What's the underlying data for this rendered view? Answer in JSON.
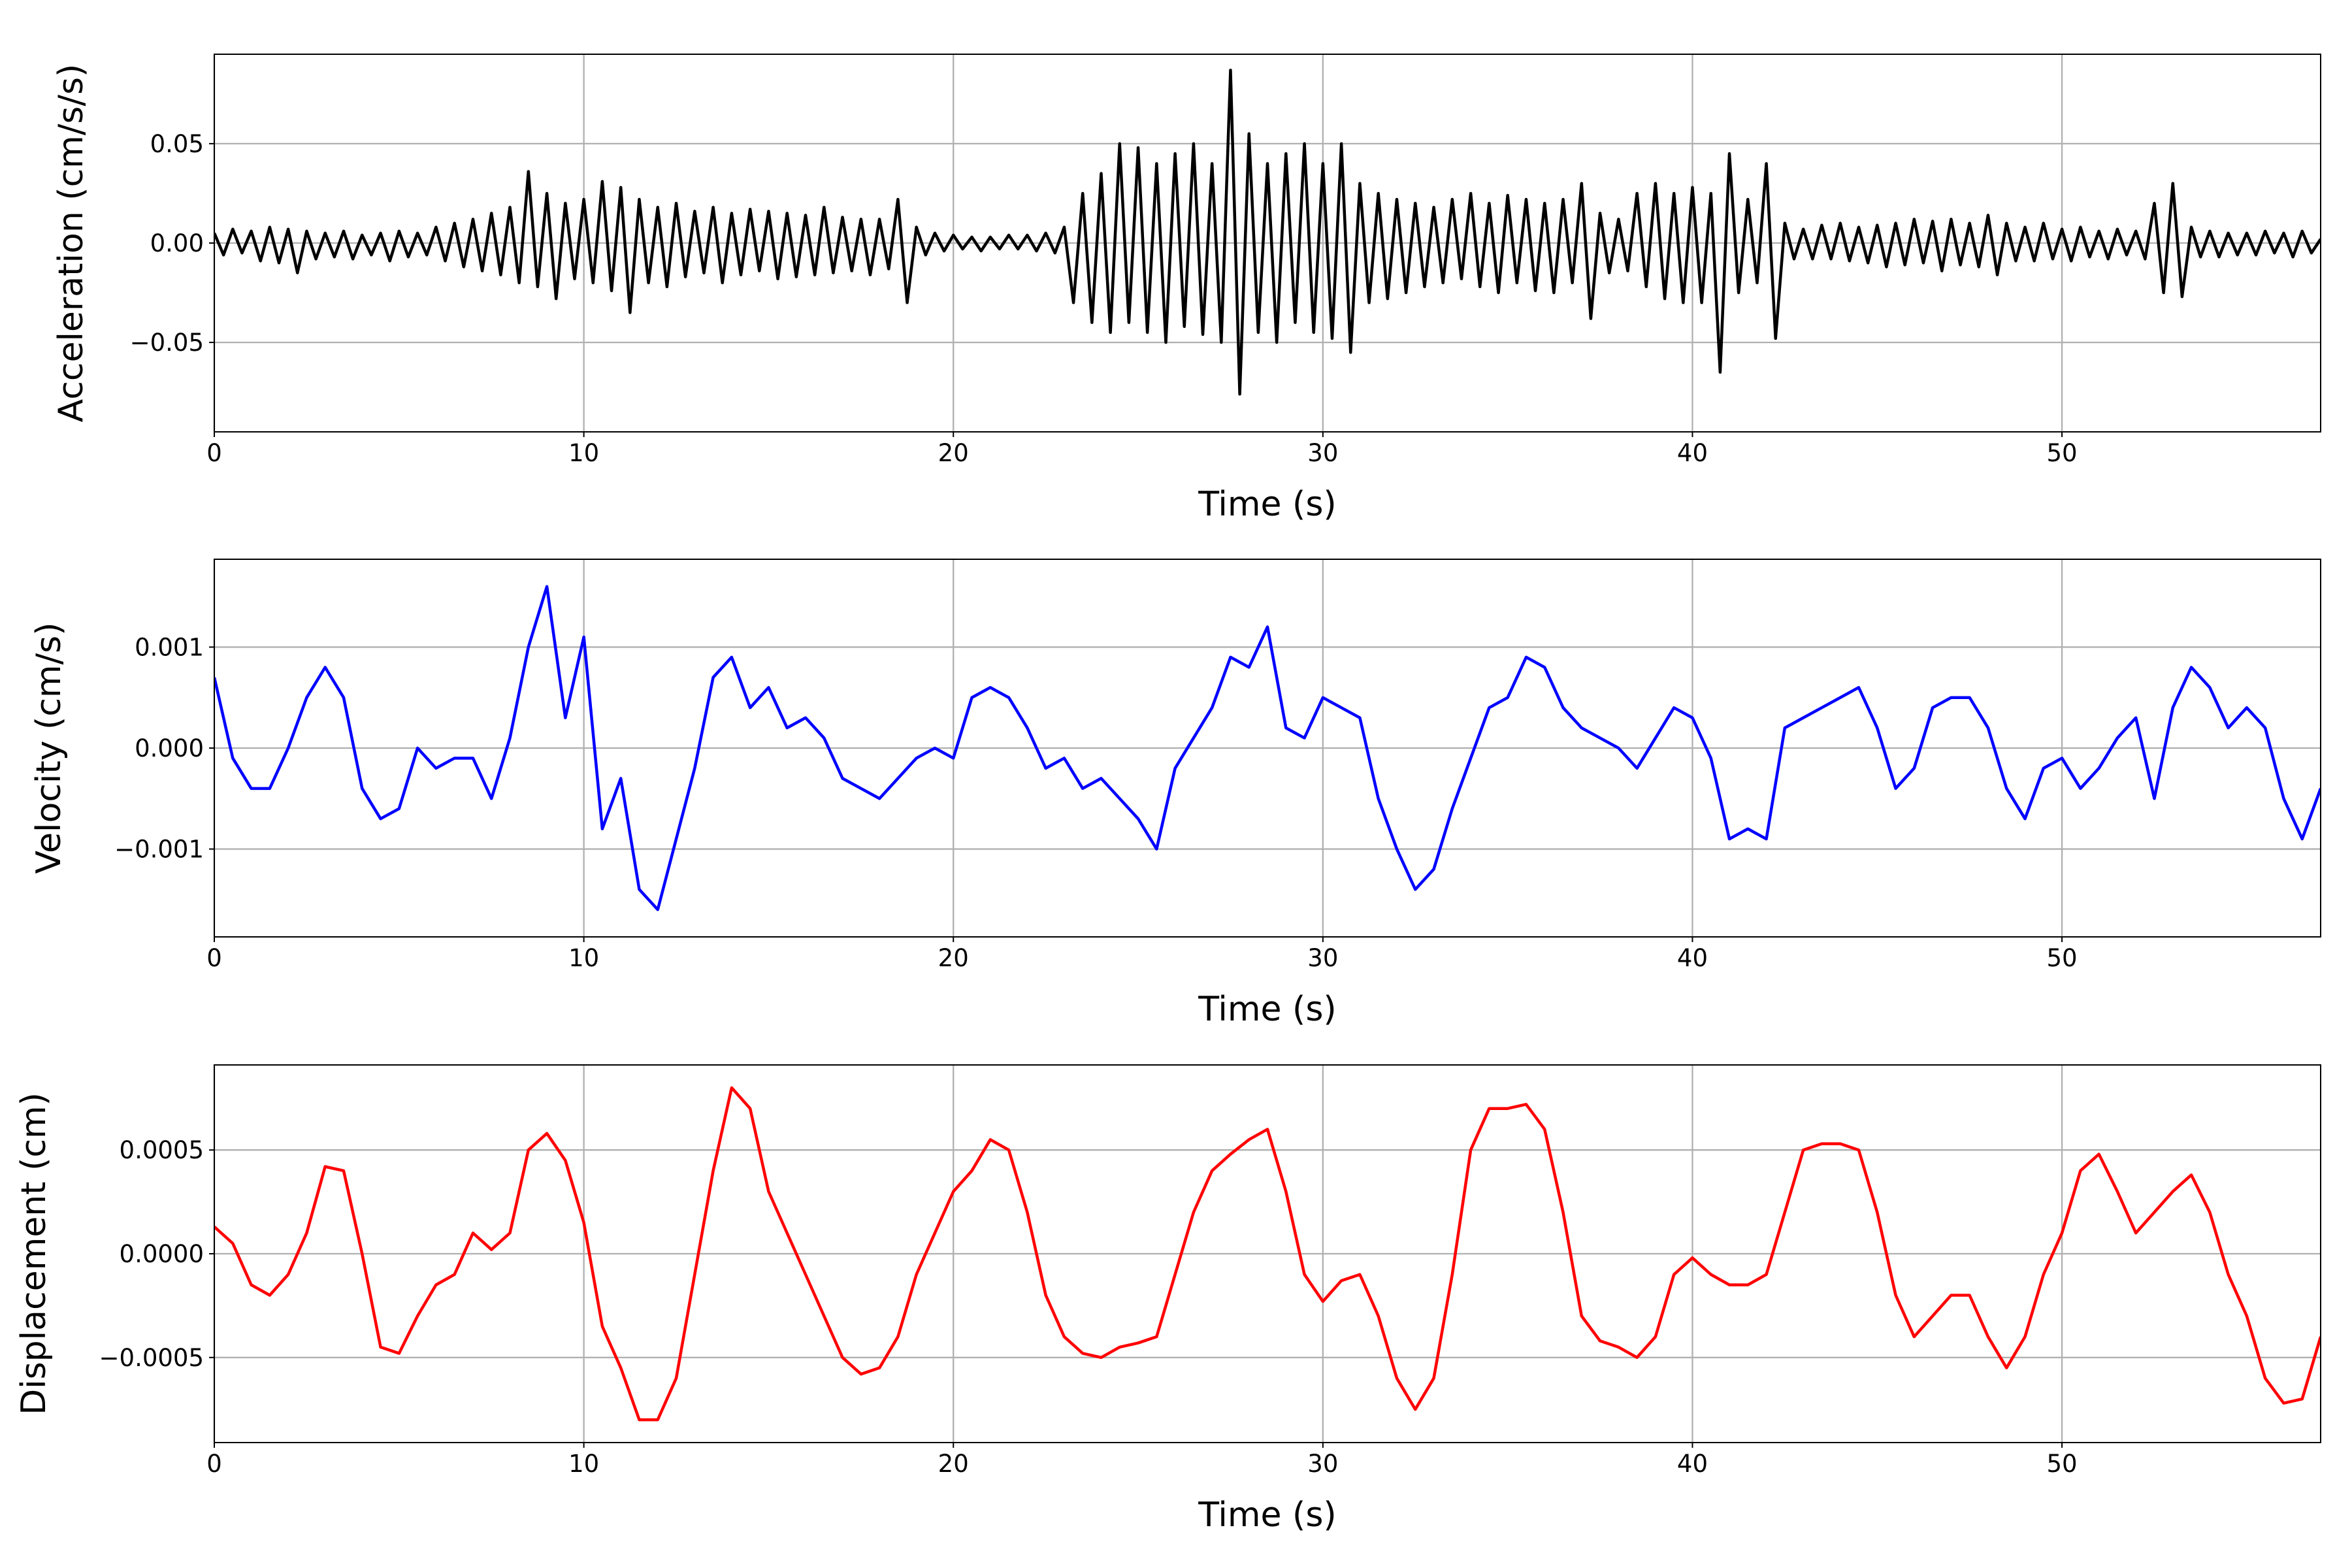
{
  "chart_data": [
    {
      "type": "line",
      "color": "#000000",
      "grid": true,
      "xlabel": "Time (s)",
      "ylabel": "Acceleration (cm/s/s)",
      "xlim": [
        0,
        57
      ],
      "xticks": [
        0,
        10,
        20,
        30,
        40,
        50
      ],
      "ylim": [
        -0.095,
        0.095
      ],
      "yticks": [
        {
          "value": -0.05,
          "label": "−0.05"
        },
        {
          "value": 0,
          "label": "0.00"
        },
        0.05
      ],
      "x": [
        0,
        0.25,
        0.5,
        0.75,
        1,
        1.25,
        1.5,
        1.75,
        2,
        2.25,
        2.5,
        2.75,
        3,
        3.25,
        3.5,
        3.75,
        4,
        4.25,
        4.5,
        4.75,
        5,
        5.25,
        5.5,
        5.75,
        6,
        6.25,
        6.5,
        6.75,
        7,
        7.25,
        7.5,
        7.75,
        8,
        8.25,
        8.5,
        8.75,
        9,
        9.25,
        9.5,
        9.75,
        10,
        10.25,
        10.5,
        10.75,
        11,
        11.25,
        11.5,
        11.75,
        12,
        12.25,
        12.5,
        12.75,
        13,
        13.25,
        13.5,
        13.75,
        14,
        14.25,
        14.5,
        14.75,
        15,
        15.25,
        15.5,
        15.75,
        16,
        16.25,
        16.5,
        16.75,
        17,
        17.25,
        17.5,
        17.75,
        18,
        18.25,
        18.5,
        18.75,
        19,
        19.25,
        19.5,
        19.75,
        20,
        20.25,
        20.5,
        20.75,
        21,
        21.25,
        21.5,
        21.75,
        22,
        22.25,
        22.5,
        22.75,
        23,
        23.25,
        23.5,
        23.75,
        24,
        24.25,
        24.5,
        24.75,
        25,
        25.25,
        25.5,
        25.75,
        26,
        26.25,
        26.5,
        26.75,
        27,
        27.25,
        27.5,
        27.75,
        28,
        28.25,
        28.5,
        28.75,
        29,
        29.25,
        29.5,
        29.75,
        30,
        30.25,
        30.5,
        30.75,
        31,
        31.25,
        31.5,
        31.75,
        32,
        32.25,
        32.5,
        32.75,
        33,
        33.25,
        33.5,
        33.75,
        34,
        34.25,
        34.5,
        34.75,
        35,
        35.25,
        35.5,
        35.75,
        36,
        36.25,
        36.5,
        36.75,
        37,
        37.25,
        37.5,
        37.75,
        38,
        38.25,
        38.5,
        38.75,
        39,
        39.25,
        39.5,
        39.75,
        40,
        40.25,
        40.5,
        40.75,
        41,
        41.25,
        41.5,
        41.75,
        42,
        42.25,
        42.5,
        42.75,
        43,
        43.25,
        43.5,
        43.75,
        44,
        44.25,
        44.5,
        44.75,
        45,
        45.25,
        45.5,
        45.75,
        46,
        46.25,
        46.5,
        46.75,
        47,
        47.25,
        47.5,
        47.75,
        48,
        48.25,
        48.5,
        48.75,
        49,
        49.25,
        49.5,
        49.75,
        50,
        50.25,
        50.5,
        50.75,
        51,
        51.25,
        51.5,
        51.75,
        52,
        52.25,
        52.5,
        52.75,
        53,
        53.25,
        53.5,
        53.75,
        54,
        54.25,
        54.5,
        54.75,
        55,
        55.25,
        55.5,
        55.75,
        56,
        56.25,
        56.5,
        56.75,
        57
      ],
      "values": [
        0.005,
        -0.006,
        0.007,
        -0.005,
        0.006,
        -0.009,
        0.008,
        -0.01,
        0.007,
        -0.015,
        0.006,
        -0.008,
        0.005,
        -0.007,
        0.006,
        -0.008,
        0.004,
        -0.006,
        0.005,
        -0.009,
        0.006,
        -0.007,
        0.005,
        -0.006,
        0.008,
        -0.009,
        0.01,
        -0.012,
        0.012,
        -0.014,
        0.015,
        -0.016,
        0.018,
        -0.02,
        0.036,
        -0.022,
        0.025,
        -0.028,
        0.02,
        -0.018,
        0.022,
        -0.02,
        0.031,
        -0.024,
        0.028,
        -0.035,
        0.022,
        -0.02,
        0.018,
        -0.022,
        0.02,
        -0.017,
        0.016,
        -0.015,
        0.018,
        -0.02,
        0.015,
        -0.016,
        0.017,
        -0.014,
        0.016,
        -0.018,
        0.015,
        -0.017,
        0.014,
        -0.016,
        0.018,
        -0.015,
        0.013,
        -0.014,
        0.012,
        -0.016,
        0.012,
        -0.013,
        0.022,
        -0.03,
        0.008,
        -0.006,
        0.005,
        -0.004,
        0.004,
        -0.003,
        0.003,
        -0.004,
        0.003,
        -0.003,
        0.004,
        -0.003,
        0.004,
        -0.004,
        0.005,
        -0.005,
        0.008,
        -0.03,
        0.025,
        -0.04,
        0.035,
        -0.045,
        0.05,
        -0.04,
        0.048,
        -0.045,
        0.04,
        -0.05,
        0.045,
        -0.042,
        0.05,
        -0.046,
        0.04,
        -0.05,
        0.087,
        -0.076,
        0.055,
        -0.045,
        0.04,
        -0.05,
        0.045,
        -0.04,
        0.05,
        -0.045,
        0.04,
        -0.048,
        0.05,
        -0.055,
        0.03,
        -0.03,
        0.025,
        -0.028,
        0.022,
        -0.025,
        0.02,
        -0.022,
        0.018,
        -0.02,
        0.022,
        -0.018,
        0.025,
        -0.022,
        0.02,
        -0.025,
        0.024,
        -0.02,
        0.022,
        -0.024,
        0.02,
        -0.025,
        0.022,
        -0.02,
        0.03,
        -0.038,
        0.015,
        -0.015,
        0.012,
        -0.014,
        0.025,
        -0.022,
        0.03,
        -0.028,
        0.025,
        -0.03,
        0.028,
        -0.03,
        0.025,
        -0.065,
        0.045,
        -0.025,
        0.022,
        -0.02,
        0.04,
        -0.048,
        0.01,
        -0.008,
        0.007,
        -0.008,
        0.009,
        -0.008,
        0.01,
        -0.009,
        0.008,
        -0.01,
        0.009,
        -0.012,
        0.01,
        -0.011,
        0.012,
        -0.01,
        0.011,
        -0.014,
        0.012,
        -0.011,
        0.01,
        -0.012,
        0.014,
        -0.016,
        0.01,
        -0.009,
        0.008,
        -0.009,
        0.01,
        -0.008,
        0.007,
        -0.009,
        0.008,
        -0.007,
        0.006,
        -0.008,
        0.007,
        -0.006,
        0.006,
        -0.008,
        0.02,
        -0.025,
        0.03,
        -0.027,
        0.008,
        -0.007,
        0.006,
        -0.007,
        0.005,
        -0.006,
        0.005,
        -0.006,
        0.006,
        -0.005,
        0.005,
        -0.007,
        0.006,
        -0.005,
        0.002
      ]
    },
    {
      "type": "line",
      "color": "#0000ff",
      "grid": true,
      "xlabel": "Time (s)",
      "ylabel": "Velocity (cm/s)",
      "xlim": [
        0,
        57
      ],
      "xticks": [
        0,
        10,
        20,
        30,
        40,
        50
      ],
      "ylim": [
        -0.00187,
        0.00187
      ],
      "yticks": [
        {
          "value": -0.001,
          "label": "−0.001"
        },
        {
          "value": 0,
          "label": "0.000"
        },
        0.001
      ],
      "x": [
        0,
        0.5,
        1,
        1.5,
        2,
        2.5,
        3,
        3.5,
        4,
        4.5,
        5,
        5.5,
        6,
        6.5,
        7,
        7.5,
        8,
        8.5,
        9,
        9.5,
        10,
        10.5,
        11,
        11.5,
        12,
        12.5,
        13,
        13.5,
        14,
        14.5,
        15,
        15.5,
        16,
        16.5,
        17,
        17.5,
        18,
        18.5,
        19,
        19.5,
        20,
        20.5,
        21,
        21.5,
        22,
        22.5,
        23,
        23.5,
        24,
        24.5,
        25,
        25.5,
        26,
        26.5,
        27,
        27.5,
        28,
        28.5,
        29,
        29.5,
        30,
        30.5,
        31,
        31.5,
        32,
        32.5,
        33,
        33.5,
        34,
        34.5,
        35,
        35.5,
        36,
        36.5,
        37,
        37.5,
        38,
        38.5,
        39,
        39.5,
        40,
        40.5,
        41,
        41.5,
        42,
        42.5,
        43,
        43.5,
        44,
        44.5,
        45,
        45.5,
        46,
        46.5,
        47,
        47.5,
        48,
        48.5,
        49,
        49.5,
        50,
        50.5,
        51,
        51.5,
        52,
        52.5,
        53,
        53.5,
        54,
        54.5,
        55,
        55.5,
        56,
        56.5,
        57
      ],
      "values": [
        0.0007,
        -0.0001,
        -0.0004,
        -0.0004,
        0.0,
        0.0005,
        0.0008,
        0.0005,
        -0.0004,
        -0.0007,
        -0.0006,
        0.0,
        -0.0002,
        -0.0001,
        -0.0001,
        -0.0005,
        0.0001,
        0.001,
        0.0016,
        0.0003,
        0.0011,
        -0.0008,
        -0.0003,
        -0.0014,
        -0.0016,
        -0.0009,
        -0.0002,
        0.0007,
        0.0009,
        0.0004,
        0.0006,
        0.0002,
        0.0003,
        0.0001,
        -0.0003,
        -0.0004,
        -0.0005,
        -0.0003,
        -0.0001,
        0.0,
        -0.0001,
        0.0005,
        0.0006,
        0.0005,
        0.0002,
        -0.0002,
        -0.0001,
        -0.0004,
        -0.0003,
        -0.0005,
        -0.0007,
        -0.001,
        -0.0002,
        0.0001,
        0.0004,
        0.0009,
        0.0008,
        0.0012,
        0.0002,
        0.0001,
        0.0005,
        0.0004,
        0.0003,
        -0.0005,
        -0.001,
        -0.0014,
        -0.0012,
        -0.0006,
        -0.0001,
        0.0004,
        0.0005,
        0.0009,
        0.0008,
        0.0004,
        0.0002,
        0.0001,
        0.0,
        -0.0002,
        0.0001,
        0.0004,
        0.0003,
        -0.0001,
        -0.0009,
        -0.0008,
        -0.0009,
        0.0002,
        0.0003,
        0.0004,
        0.0005,
        0.0006,
        0.0002,
        -0.0004,
        -0.0002,
        0.0004,
        0.0005,
        0.0005,
        0.0002,
        -0.0004,
        -0.0007,
        -0.0002,
        -0.0001,
        -0.0004,
        -0.0002,
        0.0001,
        0.0003,
        -0.0005,
        0.0004,
        0.0008,
        0.0006,
        0.0002,
        0.0004,
        0.0002,
        -0.0005,
        -0.0009,
        -0.0004
      ]
    },
    {
      "type": "line",
      "color": "#ff0000",
      "grid": true,
      "xlabel": "Time (s)",
      "ylabel": "Displacement (cm)",
      "xlim": [
        0,
        57
      ],
      "xticks": [
        0,
        10,
        20,
        30,
        40,
        50
      ],
      "ylim": [
        -0.00091,
        0.00091
      ],
      "yticks": [
        {
          "value": -0.0005,
          "label": "−0.0005"
        },
        {
          "value": 0,
          "label": "0.0000"
        },
        0.0005
      ],
      "x": [
        0,
        0.5,
        1,
        1.5,
        2,
        2.5,
        3,
        3.5,
        4,
        4.5,
        5,
        5.5,
        6,
        6.5,
        7,
        7.5,
        8,
        8.5,
        9,
        9.5,
        10,
        10.5,
        11,
        11.5,
        12,
        12.5,
        13,
        13.5,
        14,
        14.5,
        15,
        15.5,
        16,
        16.5,
        17,
        17.5,
        18,
        18.5,
        19,
        19.5,
        20,
        20.5,
        21,
        21.5,
        22,
        22.5,
        23,
        23.5,
        24,
        24.5,
        25,
        25.5,
        26,
        26.5,
        27,
        27.5,
        28,
        28.5,
        29,
        29.5,
        30,
        30.5,
        31,
        31.5,
        32,
        32.5,
        33,
        33.5,
        34,
        34.5,
        35,
        35.5,
        36,
        36.5,
        37,
        37.5,
        38,
        38.5,
        39,
        39.5,
        40,
        40.5,
        41,
        41.5,
        42,
        42.5,
        43,
        43.5,
        44,
        44.5,
        45,
        45.5,
        46,
        46.5,
        47,
        47.5,
        48,
        48.5,
        49,
        49.5,
        50,
        50.5,
        51,
        51.5,
        52,
        52.5,
        53,
        53.5,
        54,
        54.5,
        55,
        55.5,
        56,
        56.5,
        57
      ],
      "values": [
        0.00013,
        5e-05,
        -0.00015,
        -0.0002,
        -0.0001,
        0.0001,
        0.00042,
        0.0004,
        0.0,
        -0.00045,
        -0.00048,
        -0.0003,
        -0.00015,
        -0.0001,
        0.0001,
        2e-05,
        0.0001,
        0.0005,
        0.00058,
        0.00045,
        0.00015,
        -0.00035,
        -0.00055,
        -0.0008,
        -0.0008,
        -0.0006,
        -0.0001,
        0.0004,
        0.0008,
        0.0007,
        0.0003,
        0.0001,
        -0.0001,
        -0.0003,
        -0.0005,
        -0.00058,
        -0.00055,
        -0.0004,
        -0.0001,
        0.0001,
        0.0003,
        0.0004,
        0.00055,
        0.0005,
        0.0002,
        -0.0002,
        -0.0004,
        -0.00048,
        -0.0005,
        -0.00045,
        -0.00043,
        -0.0004,
        -0.0001,
        0.0002,
        0.0004,
        0.00048,
        0.00055,
        0.0006,
        0.0003,
        -0.0001,
        -0.00023,
        -0.00013,
        -0.0001,
        -0.0003,
        -0.0006,
        -0.00075,
        -0.0006,
        -0.0001,
        0.0005,
        0.0007,
        0.0007,
        0.00072,
        0.0006,
        0.0002,
        -0.0003,
        -0.00042,
        -0.00045,
        -0.0005,
        -0.0004,
        -0.0001,
        -2e-05,
        -0.0001,
        -0.00015,
        -0.00015,
        -0.0001,
        0.0002,
        0.0005,
        0.00053,
        0.00053,
        0.0005,
        0.0002,
        -0.0002,
        -0.0004,
        -0.0003,
        -0.0002,
        -0.0002,
        -0.0004,
        -0.00055,
        -0.0004,
        -0.0001,
        0.0001,
        0.0004,
        0.00048,
        0.0003,
        0.0001,
        0.0002,
        0.0003,
        0.00038,
        0.0002,
        -0.0001,
        -0.0003,
        -0.0006,
        -0.00072,
        -0.0007,
        -0.0004
      ]
    }
  ]
}
